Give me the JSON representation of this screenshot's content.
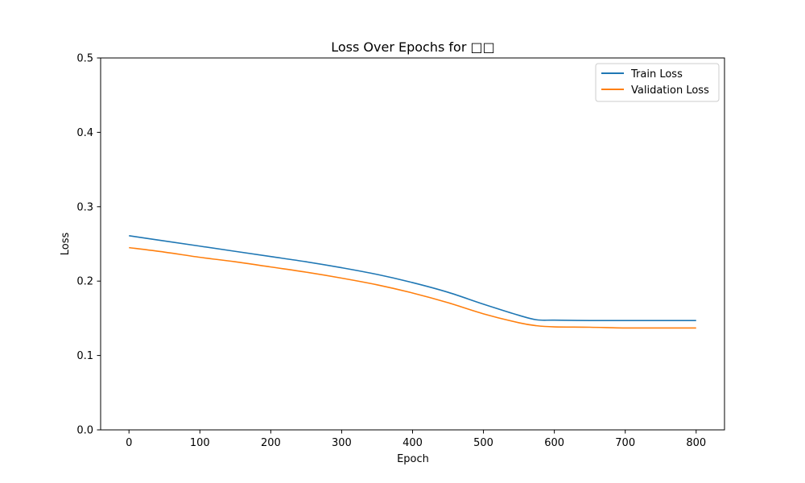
{
  "chart_data": {
    "type": "line",
    "title": "Loss Over Epochs for □□",
    "xlabel": "Epoch",
    "ylabel": "Loss",
    "xlim": [
      -40,
      840
    ],
    "ylim": [
      0,
      0.5
    ],
    "xticks": [
      0,
      100,
      200,
      300,
      400,
      500,
      600,
      700,
      800
    ],
    "yticks": [
      0.0,
      0.1,
      0.2,
      0.3,
      0.4,
      0.5
    ],
    "xtick_labels": [
      "0",
      "100",
      "200",
      "300",
      "400",
      "500",
      "600",
      "700",
      "800"
    ],
    "ytick_labels": [
      "0.0",
      "0.1",
      "0.2",
      "0.3",
      "0.4",
      "0.5"
    ],
    "grid": false,
    "legend_position": "top-right",
    "series": [
      {
        "name": "Train Loss",
        "color": "#1f77b4",
        "x": [
          0,
          50,
          100,
          150,
          200,
          250,
          300,
          350,
          400,
          450,
          500,
          550,
          575,
          600,
          650,
          700,
          750,
          800
        ],
        "y": [
          0.261,
          0.254,
          0.247,
          0.24,
          0.233,
          0.226,
          0.218,
          0.209,
          0.198,
          0.185,
          0.169,
          0.154,
          0.148,
          0.1475,
          0.147,
          0.147,
          0.147,
          0.147
        ]
      },
      {
        "name": "Validation Loss",
        "color": "#ff7f0e",
        "x": [
          0,
          50,
          100,
          150,
          200,
          250,
          300,
          350,
          400,
          450,
          500,
          550,
          575,
          600,
          650,
          700,
          750,
          800
        ],
        "y": [
          0.245,
          0.239,
          0.232,
          0.226,
          0.219,
          0.212,
          0.204,
          0.195,
          0.184,
          0.171,
          0.156,
          0.144,
          0.14,
          0.1385,
          0.138,
          0.137,
          0.137,
          0.137
        ]
      }
    ]
  }
}
